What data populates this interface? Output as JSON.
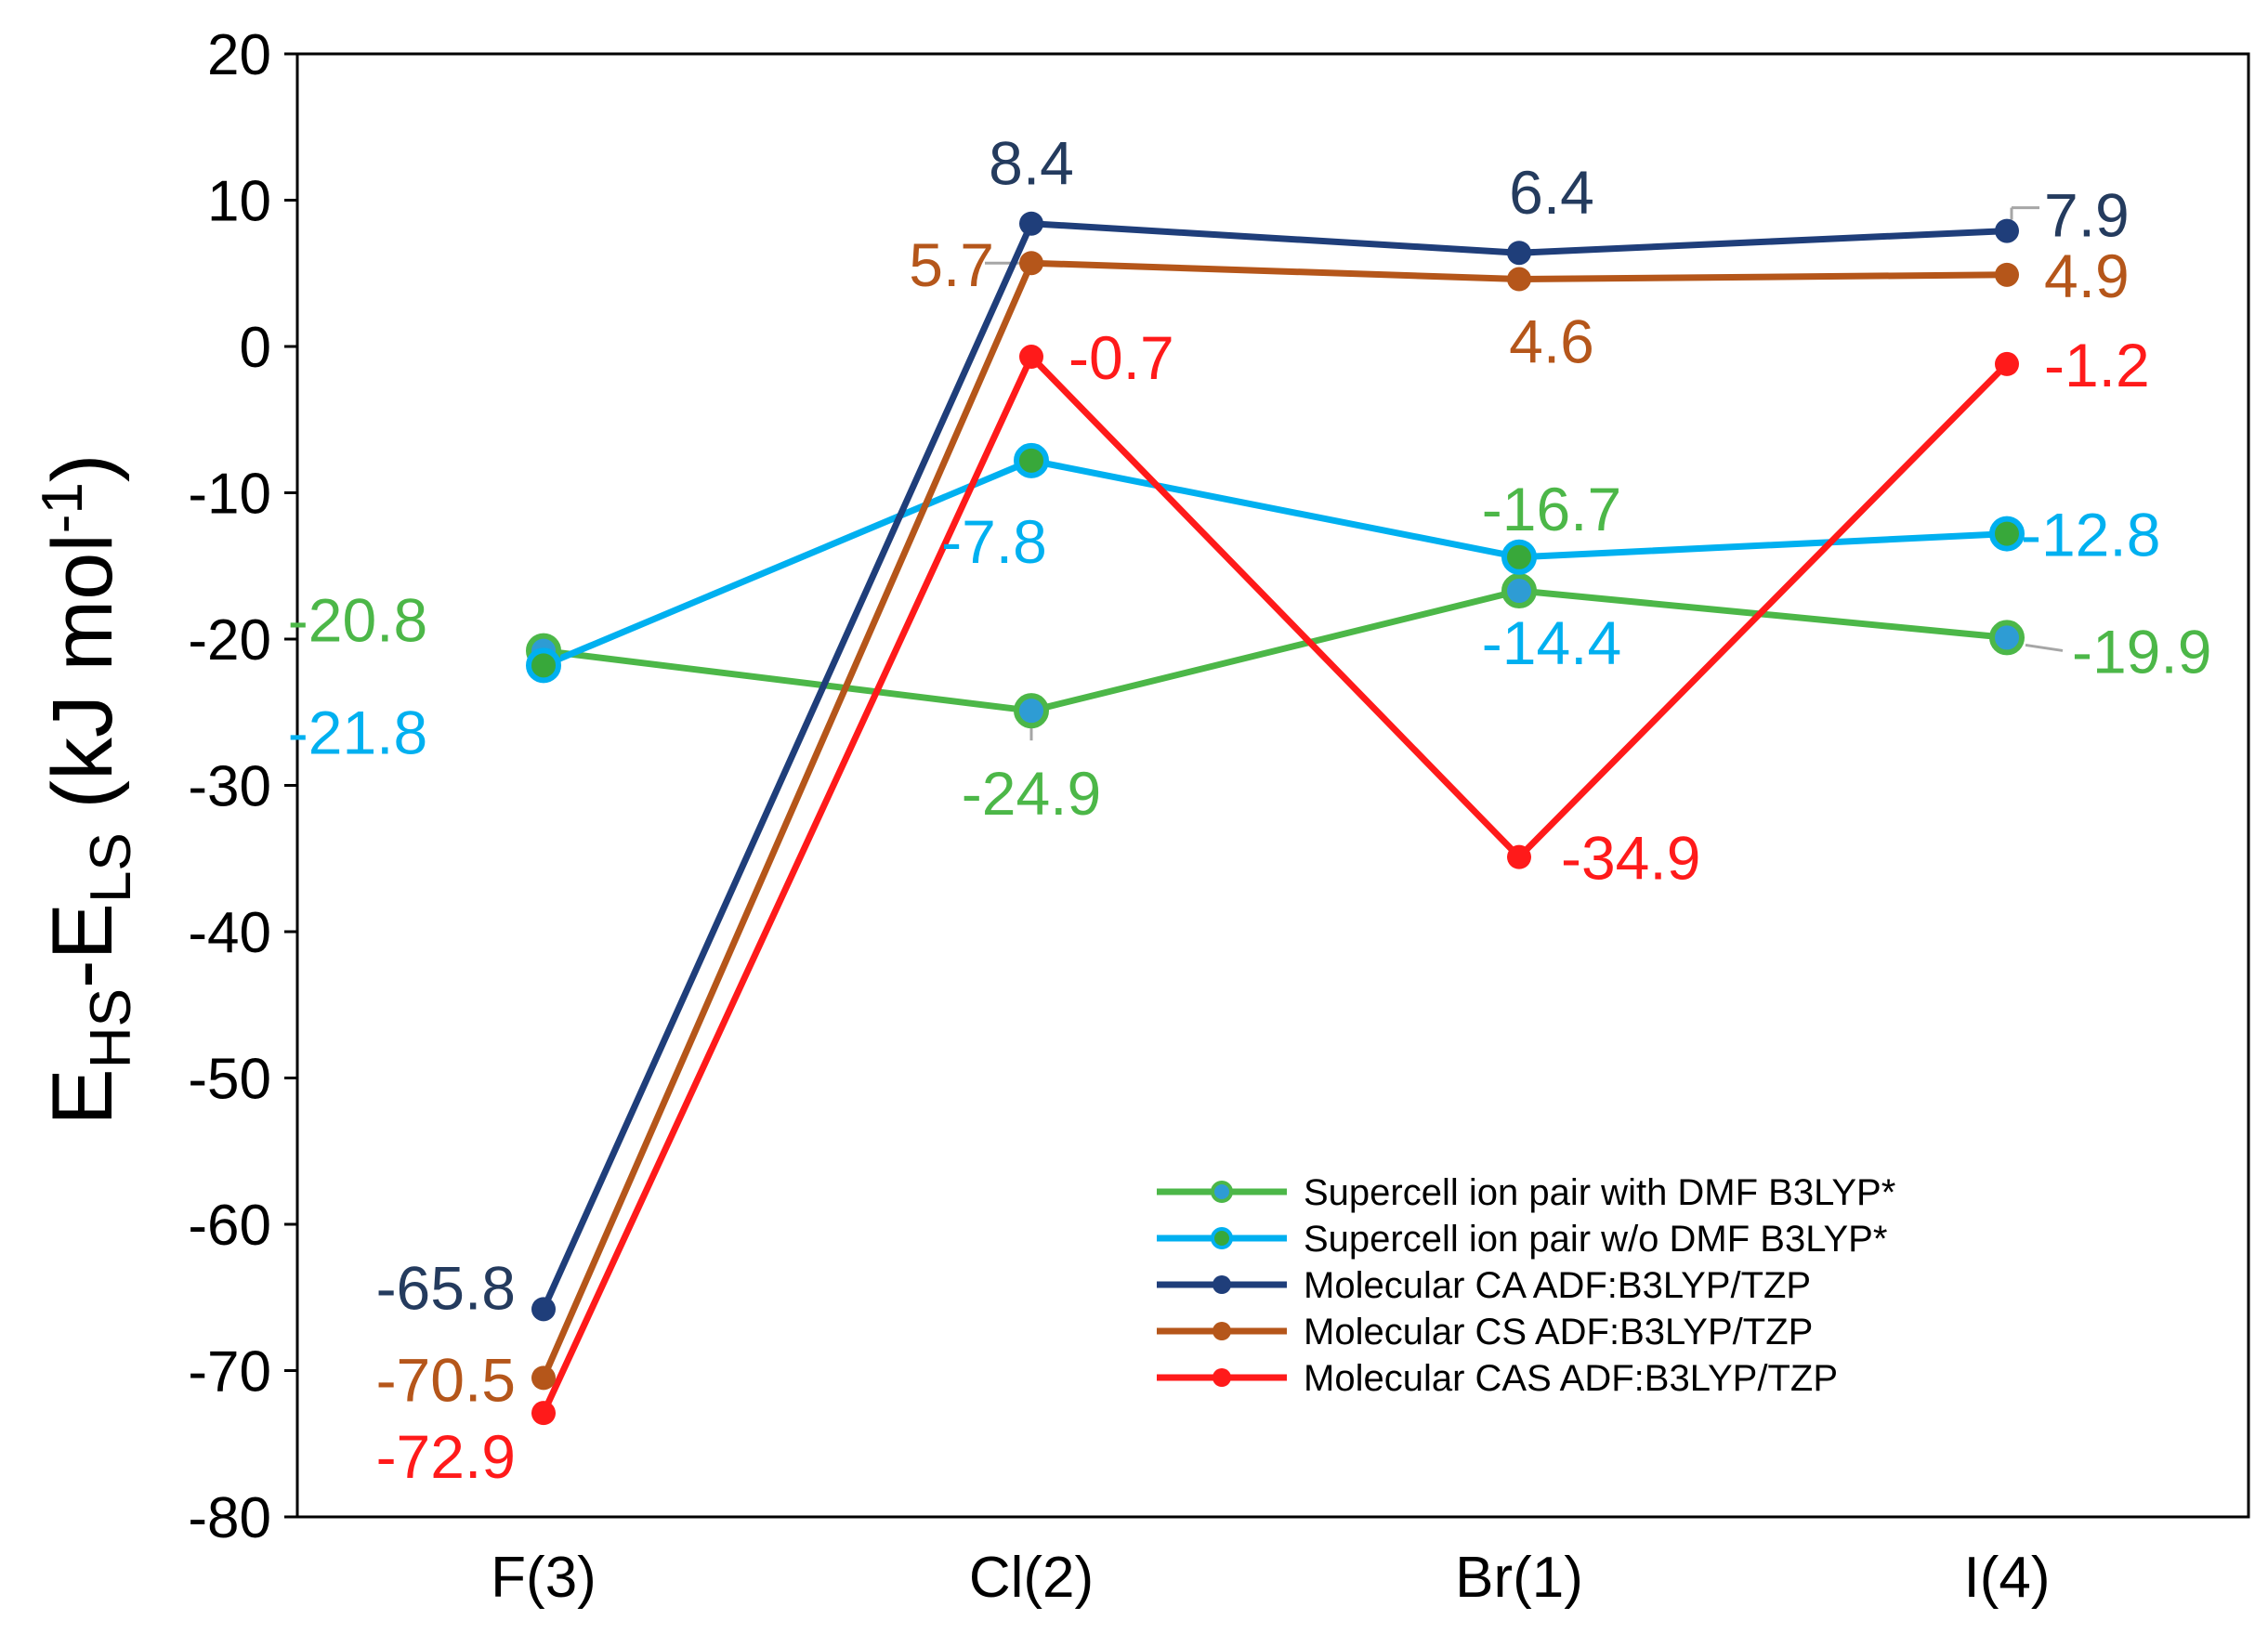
{
  "chart_data": {
    "type": "line",
    "title": "",
    "xlabel": "",
    "ylabel": {
      "main_1": "E",
      "sub_1": "HS",
      "main_2": "-E",
      "sub_2": "LS",
      "main_3": " (kJ mol",
      "sup": "-1",
      "main_4": ")"
    },
    "categories": [
      "F(3)",
      "Cl(2)",
      "Br(1)",
      "I(4)"
    ],
    "ylim": [
      -80,
      20
    ],
    "yticks": [
      20,
      10,
      0,
      -10,
      -20,
      -30,
      -40,
      -50,
      -60,
      -70,
      -80
    ],
    "legend_position": "bottom-right",
    "series": [
      {
        "name": "Supercell ion pair with DMF B3LYP*",
        "color": "#4cb748",
        "marker_color": "#2e9cd4",
        "values": [
          -20.8,
          -24.9,
          -16.7,
          -19.9
        ],
        "labels": [
          "-20.8",
          "-24.9",
          "-16.7",
          "-19.9"
        ]
      },
      {
        "name": "Supercell ion pair w/o DMF B3LYP*",
        "color": "#00b0f0",
        "marker_color": "#38a83a",
        "values": [
          -21.8,
          -7.8,
          -14.4,
          -12.8
        ],
        "labels": [
          "-21.8",
          "-7.8",
          "-14.4",
          "-12.8"
        ]
      },
      {
        "name": "Molecular CA ADF:B3LYP/TZP",
        "color": "#1f3e7a",
        "marker_color": "#1f3e7a",
        "label_color": "#243b5e",
        "values": [
          -65.8,
          8.4,
          6.4,
          7.9
        ],
        "labels": [
          "-65.8",
          "8.4",
          "6.4",
          "7.9"
        ]
      },
      {
        "name": "Molecular CS ADF:B3LYP/TZP",
        "color": "#b5561a",
        "marker_color": "#b5561a",
        "values": [
          -70.5,
          5.7,
          4.6,
          4.9
        ],
        "labels": [
          "-70.5",
          "5.7",
          "4.6",
          "4.9"
        ]
      },
      {
        "name": "Molecular CAS ADF:B3LYP/TZP",
        "color": "#ff1a1a",
        "marker_color": "#ff1a1a",
        "values": [
          -72.9,
          -0.7,
          -34.9,
          -1.2
        ],
        "labels": [
          "-72.9",
          "-0.7",
          "-34.9",
          "-1.2"
        ]
      }
    ]
  }
}
